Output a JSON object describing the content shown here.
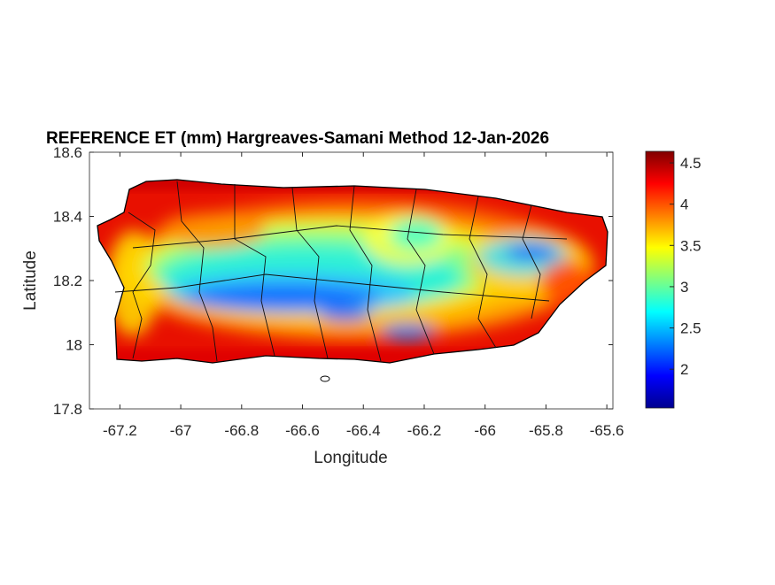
{
  "chart_data": {
    "type": "heatmap",
    "title": "REFERENCE ET (mm) Hargreaves-Samani Method  12-Jan-2026",
    "xlabel": "Longitude",
    "ylabel": "Latitude",
    "xlim": [
      -67.3,
      -65.58
    ],
    "ylim": [
      17.8,
      18.6
    ],
    "xticks": [
      -67.2,
      -67,
      -66.8,
      -66.6,
      -66.4,
      -66.2,
      -66,
      -65.8,
      -65.6
    ],
    "xtick_labels": [
      "-67.2",
      "-67",
      "-66.8",
      "-66.6",
      "-66.4",
      "-66.2",
      "-66",
      "-65.8",
      "-65.6"
    ],
    "yticks": [
      17.8,
      18,
      18.2,
      18.4,
      18.6
    ],
    "ytick_labels": [
      "17.8",
      "18",
      "18.2",
      "18.4",
      "18.6"
    ],
    "colorbar": {
      "colormap": "jet",
      "clim": [
        1.53,
        4.64
      ],
      "ticks": [
        2,
        2.5,
        3,
        3.5,
        4,
        4.5
      ],
      "tick_labels": [
        "2",
        "2.5",
        "3",
        "3.5",
        "4",
        "4.5"
      ]
    },
    "region": "Puerto Rico",
    "grid": false
  }
}
